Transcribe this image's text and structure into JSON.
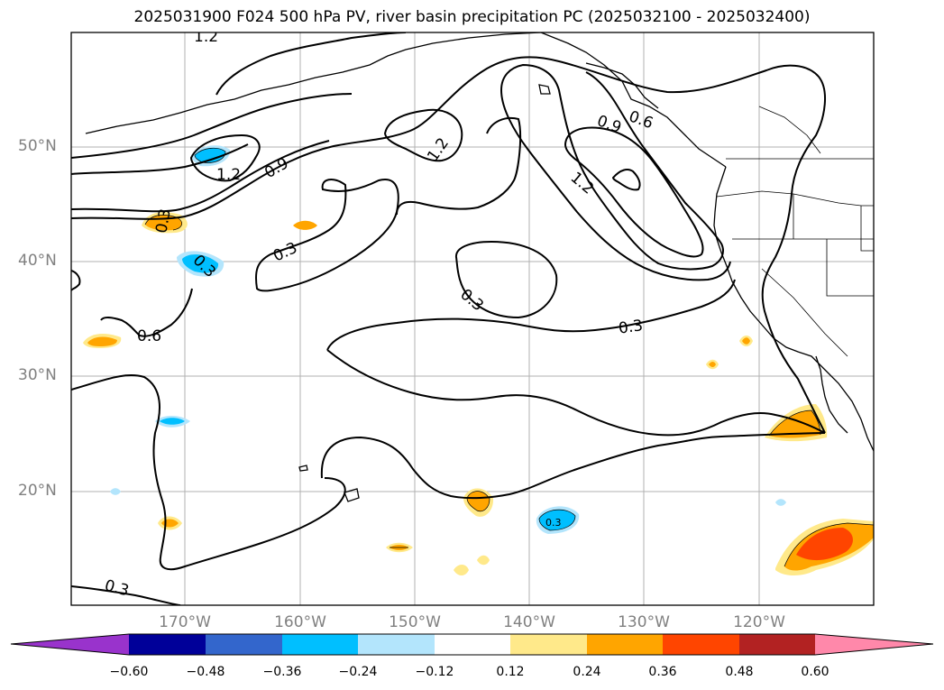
{
  "title": "2025031900 F024 500 hPa PV, river basin precipitation PC (2025032100 - 2025032400)",
  "lat_labels": [
    "50°N",
    "40°N",
    "30°N",
    "20°N"
  ],
  "lon_labels": [
    "170°W",
    "160°W",
    "150°W",
    "140°W",
    "130°W",
    "120°W"
  ],
  "contour_labels": [
    "1.2",
    "1.2",
    "0.9",
    "1.2",
    "0.9",
    "0.6",
    "1.2",
    "0.3",
    "0.3",
    "0.3",
    "0.3",
    "0.3",
    "0.6",
    "0.3",
    "0.3"
  ],
  "colorbar": {
    "ticks": [
      "−0.60",
      "−0.48",
      "−0.36",
      "−0.24",
      "−0.12",
      "0.12",
      "0.24",
      "0.36",
      "0.48",
      "0.60"
    ],
    "colors": [
      "#9933cc",
      "#000099",
      "#3366cc",
      "#00bfff",
      "#b3e5fc",
      "#ffffff",
      "#ffe98a",
      "#ffa500",
      "#ff4500",
      "#b22222",
      "#ff88aa"
    ]
  },
  "map": {
    "gridlines": true,
    "land_outline_color": "#000000",
    "pv_contour_color": "#000000"
  }
}
